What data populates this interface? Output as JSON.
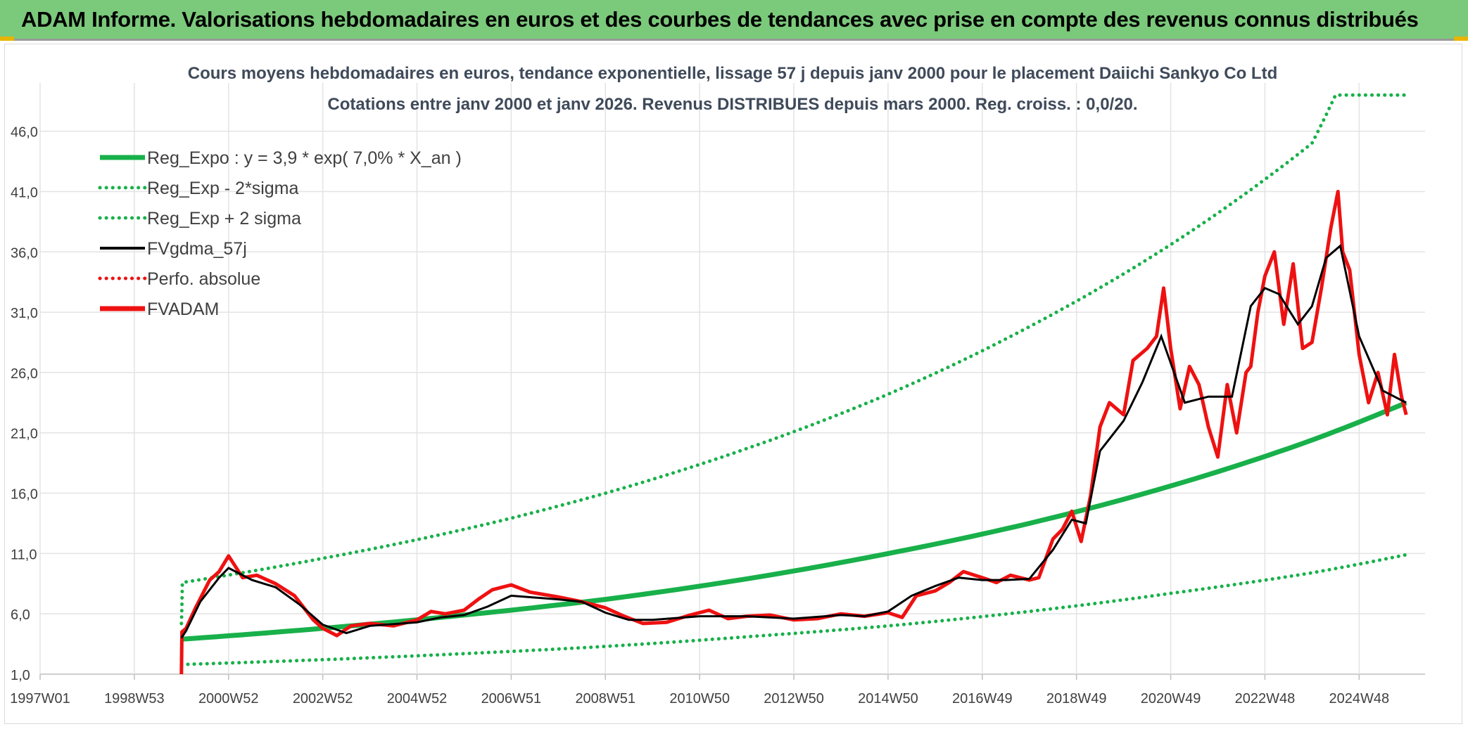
{
  "header": {
    "title": "ADAM Informe. Valorisations hebdomadaires en euros et des courbes de tendances avec prise en compte des revenus connus distribués"
  },
  "colors": {
    "header_bg": "#7bc97b",
    "regression": "#18b04a",
    "adam": "#ee1111",
    "gdma": "#000000",
    "grid": "#e3e3e3",
    "title_text": "#3f4a5a"
  },
  "chart_data": {
    "type": "line",
    "title": "Cours moyens hebdomadaires en euros, tendance exponentielle, lissage 57 j depuis janv 2000 pour le placement Daiichi Sankyo Co Ltd",
    "subtitle": "Cotations entre janv 2000 et janv 2026. Revenus DISTRIBUES depuis mars 2000. Reg. croiss. : 0,0/20.",
    "xlabel": "",
    "ylabel": "",
    "x_range": [
      1997.0,
      2026.4
    ],
    "ylim": [
      1,
      50
    ],
    "y_ticks": [
      "1,0",
      "6,0",
      "11,0",
      "16,0",
      "21,0",
      "26,0",
      "31,0",
      "36,0",
      "41,0",
      "46,0"
    ],
    "y_tick_values": [
      1,
      6,
      11,
      16,
      21,
      26,
      31,
      36,
      41,
      46
    ],
    "x_ticks": [
      "1997W01",
      "1998W53",
      "2000W52",
      "2002W52",
      "2004W52",
      "2006W51",
      "2008W51",
      "2010W50",
      "2012W50",
      "2014W50",
      "2016W49",
      "2018W49",
      "2020W49",
      "2022W48",
      "2024W48"
    ],
    "x_tick_values": [
      1997.0,
      1999.0,
      2001.0,
      2003.0,
      2005.0,
      2007.0,
      2009.0,
      2011.0,
      2013.0,
      2015.0,
      2017.0,
      2019.0,
      2021.0,
      2023.0,
      2025.0
    ],
    "grid": true,
    "legend_position": "top-left",
    "legend": [
      {
        "label": "Reg_Expo : y = 3,9 * exp( 7,0% *  X_an )",
        "color": "#18b04a",
        "style": "solid-thick"
      },
      {
        "label": "Reg_Exp - 2*sigma",
        "color": "#18b04a",
        "style": "dotted"
      },
      {
        "label": "Reg_Exp + 2 sigma",
        "color": "#18b04a",
        "style": "dotted"
      },
      {
        "label": "FVgdma_57j",
        "color": "#000000",
        "style": "solid"
      },
      {
        "label": "Perfo. absolue",
        "color": "#ee1111",
        "style": "dotted"
      },
      {
        "label": "FVADAM",
        "color": "#ee1111",
        "style": "solid-thick"
      }
    ],
    "series": [
      {
        "name": "Reg_Expo",
        "x": [
          2000.0,
          2003.0,
          2006.0,
          2009.0,
          2012.0,
          2015.0,
          2018.0,
          2021.0,
          2024.0,
          2026.0
        ],
        "values": [
          3.9,
          4.8,
          5.9,
          7.2,
          8.9,
          11.0,
          13.5,
          16.6,
          20.4,
          23.5
        ]
      },
      {
        "name": "Reg_Exp - 2*sigma",
        "x": [
          2000.0,
          2003.0,
          2006.0,
          2009.0,
          2012.0,
          2015.0,
          2018.0,
          2021.0,
          2024.0,
          2026.0
        ],
        "values": [
          1.8,
          2.2,
          2.7,
          3.3,
          4.1,
          5.0,
          6.2,
          7.7,
          9.4,
          10.9
        ]
      },
      {
        "name": "Reg_Exp + 2 sigma",
        "x": [
          2000.0,
          2000.02,
          2003.0,
          2006.0,
          2009.0,
          2012.0,
          2015.0,
          2018.0,
          2021.0,
          2024.0,
          2024.5,
          2026.0
        ],
        "values": [
          5.2,
          8.6,
          10.6,
          13.0,
          16.0,
          19.7,
          24.2,
          29.8,
          36.6,
          45.0,
          49.0,
          49.0
        ]
      },
      {
        "name": "FVgdma_57j",
        "x": [
          2000.0,
          2000.1,
          2000.4,
          2000.8,
          2001.0,
          2001.5,
          2002.0,
          2002.5,
          2003.0,
          2003.5,
          2004.0,
          2005.0,
          2005.5,
          2006.0,
          2006.5,
          2007.0,
          2008.0,
          2008.5,
          2009.0,
          2009.5,
          2010.0,
          2011.0,
          2012.0,
          2013.0,
          2014.0,
          2014.5,
          2015.0,
          2015.5,
          2016.0,
          2016.5,
          2017.0,
          2017.5,
          2018.0,
          2018.5,
          2018.9,
          2019.2,
          2019.5,
          2020.0,
          2020.4,
          2020.8,
          2021.3,
          2021.8,
          2022.3,
          2022.7,
          2023.0,
          2023.3,
          2023.7,
          2024.0,
          2024.3,
          2024.6,
          2025.0,
          2025.5,
          2026.0
        ],
        "values": [
          4.0,
          4.6,
          7.0,
          9.0,
          9.8,
          8.8,
          8.2,
          6.8,
          5.1,
          4.4,
          5.0,
          5.3,
          5.7,
          5.9,
          6.6,
          7.5,
          7.2,
          7.0,
          6.1,
          5.5,
          5.5,
          5.8,
          5.8,
          5.6,
          5.9,
          5.8,
          6.2,
          7.5,
          8.3,
          9.0,
          8.8,
          8.8,
          8.9,
          11.3,
          13.8,
          13.5,
          19.5,
          22.0,
          25.2,
          29.0,
          23.5,
          24.0,
          24.0,
          31.5,
          33.0,
          32.5,
          30.0,
          31.5,
          35.5,
          36.5,
          29.0,
          24.5,
          23.5
        ]
      },
      {
        "name": "FVADAM",
        "x": [
          2000.0,
          2000.01,
          2000.1,
          2000.3,
          2000.6,
          2000.8,
          2001.0,
          2001.3,
          2001.6,
          2002.0,
          2002.4,
          2002.8,
          2003.0,
          2003.3,
          2003.6,
          2004.0,
          2004.5,
          2005.0,
          2005.3,
          2005.6,
          2006.0,
          2006.3,
          2006.6,
          2007.0,
          2007.4,
          2008.0,
          2008.5,
          2009.0,
          2009.4,
          2009.8,
          2010.3,
          2010.8,
          2011.2,
          2011.6,
          2012.0,
          2012.5,
          2013.0,
          2013.5,
          2014.0,
          2014.5,
          2015.0,
          2015.3,
          2015.6,
          2016.0,
          2016.3,
          2016.6,
          2017.0,
          2017.3,
          2017.6,
          2018.0,
          2018.2,
          2018.5,
          2018.7,
          2018.9,
          2019.1,
          2019.3,
          2019.5,
          2019.7,
          2020.0,
          2020.2,
          2020.5,
          2020.7,
          2020.85,
          2021.0,
          2021.2,
          2021.4,
          2021.6,
          2021.8,
          2022.0,
          2022.2,
          2022.4,
          2022.6,
          2022.7,
          2022.85,
          2023.0,
          2023.2,
          2023.4,
          2023.6,
          2023.8,
          2024.0,
          2024.2,
          2024.4,
          2024.55,
          2024.65,
          2024.8,
          2025.0,
          2025.2,
          2025.4,
          2025.6,
          2025.75,
          2025.9,
          2026.0
        ],
        "values": [
          1.0,
          4.5,
          4.8,
          6.5,
          8.8,
          9.5,
          10.8,
          9.0,
          9.2,
          8.5,
          7.5,
          5.5,
          4.8,
          4.2,
          5.0,
          5.2,
          5.0,
          5.5,
          6.2,
          6.0,
          6.3,
          7.2,
          8.0,
          8.4,
          7.8,
          7.4,
          7.0,
          6.5,
          5.8,
          5.2,
          5.3,
          5.9,
          6.3,
          5.6,
          5.8,
          5.9,
          5.5,
          5.6,
          6.0,
          5.8,
          6.1,
          5.7,
          7.5,
          7.9,
          8.6,
          9.5,
          9.0,
          8.6,
          9.2,
          8.8,
          9.0,
          12.2,
          13.0,
          14.5,
          12.0,
          15.8,
          21.5,
          23.5,
          22.5,
          27.0,
          28.0,
          29.0,
          33.0,
          28.0,
          23.0,
          26.5,
          25.0,
          21.5,
          19.0,
          25.0,
          21.0,
          26.0,
          26.5,
          31.0,
          34.0,
          36.0,
          30.0,
          35.0,
          28.0,
          28.5,
          33.0,
          38.0,
          41.0,
          36.0,
          34.5,
          27.5,
          23.5,
          26.0,
          22.5,
          27.5,
          24.0,
          22.5
        ]
      }
    ]
  }
}
